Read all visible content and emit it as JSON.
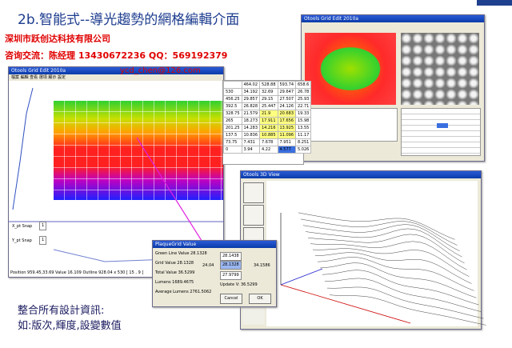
{
  "header": {
    "title": "2b.智能式--導光趨勢的網格編輯介面",
    "company": "深圳市跃创达科技有限公司",
    "contact": "咨询交流：陈经理  13430672236    QQ：569192379",
    "email": "ycd_chen@126.com"
  },
  "main_window": {
    "title": "Otools Grid Edit 2010a",
    "menu": "檔案  編輯  查看  選項  顯示  設定",
    "x_snap": "X_pt Snap",
    "y_snap": "Y_pt Snap",
    "snap_value": "1",
    "status": "Position 959.45,33.69 Value 16.109 Outline 928.04 x 530 [ 15 , 9 ]"
  },
  "table": {
    "header": [
      "464.02",
      "528.88",
      "593.74",
      "658.6"
    ],
    "rows": [
      [
        "530",
        "34.192",
        "32.69",
        "29.647",
        "26.78"
      ],
      [
        "456.25",
        "29.857",
        "29.15",
        "27.507",
        "25.93"
      ],
      [
        "392.5",
        "26.828",
        "25.447",
        "24.126",
        "22.71"
      ],
      [
        "328.75",
        "21.579",
        "21.9",
        "20.683",
        "19.33"
      ],
      [
        "265",
        "18.273",
        "17.911",
        "17.656",
        "15.98"
      ],
      [
        "201.25",
        "14.283",
        "14.216",
        "13.925",
        "13.55"
      ],
      [
        "137.5",
        "10.836",
        "10.885",
        "11.096",
        "11.17"
      ],
      [
        "73.75",
        "7.431",
        "7.678",
        "7.951",
        "8.251"
      ],
      [
        "0",
        "3.94",
        "4.22",
        "4.577",
        "5.026"
      ]
    ]
  },
  "view3d": {
    "title": "Otools 3D View"
  },
  "dialog": {
    "title": "PlaqueGrid Value",
    "lines": [
      "Green Line Value 28.1328",
      "Grid Value 28.1328",
      "Total Value 36.5299",
      "Lumens 1689.4675",
      "Average Lumens 2761.5062"
    ],
    "left": "24.04",
    "top": "28.1438",
    "right": "34.1586",
    "center": "28.1328",
    "bottom": "27.9799",
    "update": "Update V: 36.5299",
    "cancel": "Cancel",
    "ok": "OK"
  },
  "footer": {
    "line1": "整合所有設計資訊:",
    "line2": "如:版次,輝度,設變數值"
  }
}
